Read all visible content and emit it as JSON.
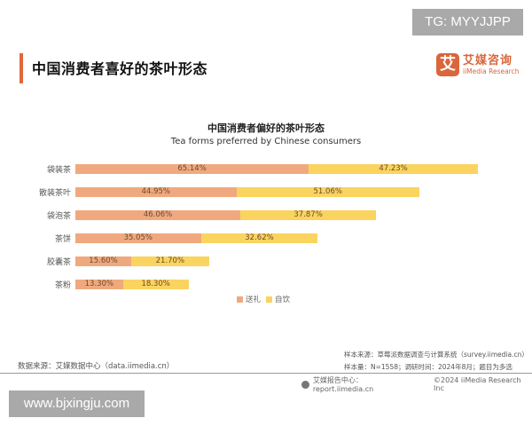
{
  "watermarks": {
    "top": "TG: MYYJJPP",
    "bottom": "www.bjxingju.com"
  },
  "header": {
    "title": "中国消费者喜好的茶叶形态",
    "accent_color": "#e0683a"
  },
  "logo": {
    "mark": "艾",
    "cn": "艾媒咨询",
    "en": "iiMedia Research"
  },
  "colors": {
    "gift": "#f0a97f",
    "self": "#fad45f"
  },
  "legend": {
    "gift": "送礼",
    "self": "自饮"
  },
  "rows": [
    {
      "label": "袋装茶",
      "gift": "65.14%",
      "self": "47.23%"
    },
    {
      "label": "散装茶叶",
      "gift": "44.95%",
      "self": "51.06%"
    },
    {
      "label": "袋泡茶",
      "gift": "46.06%",
      "self": "37.87%"
    },
    {
      "label": "茶饼",
      "gift": "35.05%",
      "self": "32.62%"
    },
    {
      "label": "胶囊茶",
      "gift": "15.60%",
      "self": "21.70%"
    },
    {
      "label": "茶粉",
      "gift": "13.30%",
      "self": "18.30%"
    }
  ],
  "chart_data": {
    "type": "bar",
    "orientation": "horizontal",
    "stacked": true,
    "title": "中国消费者偏好的茶叶形态",
    "subtitle": "Tea forms preferred by Chinese consumers",
    "categories": [
      "袋装茶",
      "散装茶叶",
      "袋泡茶",
      "茶饼",
      "胶囊茶",
      "茶粉"
    ],
    "series": [
      {
        "name": "送礼",
        "color": "#f0a97f",
        "values": [
          65.14,
          44.95,
          46.06,
          35.05,
          15.6,
          13.3
        ]
      },
      {
        "name": "自饮",
        "color": "#fad45f",
        "values": [
          47.23,
          51.06,
          37.87,
          32.62,
          21.7,
          18.3
        ]
      }
    ],
    "unit": "%",
    "xlabel": "",
    "ylabel": "",
    "grid": false,
    "legend_position": "bottom"
  },
  "sources": {
    "data_source": "数据来源：艾媒数据中心（data.iimedia.cn）",
    "sample_source": "样本来源：草莓派数据调查与计算系统（survey.iimedia.cn）",
    "sample_info": "样本量：N=1558；调研时间：2024年8月；题目为多选",
    "report_center": "艾媒报告中心：report.iimedia.cn",
    "copyright": "©2024  iiMedia Research  Inc"
  }
}
